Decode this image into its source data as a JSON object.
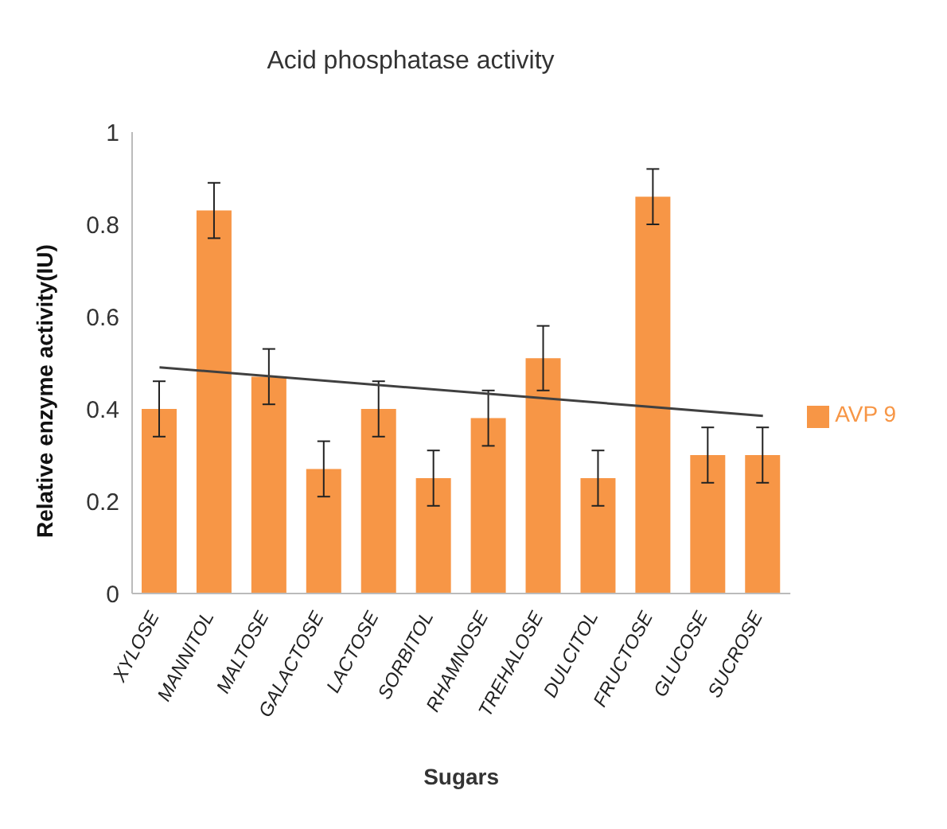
{
  "chart_data": {
    "type": "bar",
    "title": "Acid phosphatase activity",
    "xlabel": "Sugars",
    "ylabel": "Relative enzyme activity(IU)",
    "categories": [
      "XYLOSE",
      "MANNITOL",
      "MALTOSE",
      "GALACTOSE",
      "LACTOSE",
      "SORBITOL",
      "RHAMNOSE",
      "TREHALOSE",
      "DULCITOL",
      "FRUCTOSE",
      "GLUCOSE",
      "SUCROSE"
    ],
    "series": [
      {
        "name": "AVP 9",
        "color": "#f79646",
        "values": [
          0.4,
          0.83,
          0.47,
          0.27,
          0.4,
          0.25,
          0.38,
          0.51,
          0.25,
          0.86,
          0.3,
          0.3
        ],
        "errors": [
          0.06,
          0.06,
          0.06,
          0.06,
          0.06,
          0.06,
          0.06,
          0.07,
          0.06,
          0.06,
          0.06,
          0.06
        ]
      },
      {
        "type": "line",
        "color": "#404040",
        "x": [
          "XYLOSE",
          "SUCROSE"
        ],
        "values": [
          0.49,
          0.385
        ]
      }
    ],
    "ylim": [
      0,
      1
    ],
    "yticks": [
      0,
      0.2,
      0.4,
      0.6,
      0.8,
      1
    ],
    "grid": false,
    "legend": "right",
    "marker": "none",
    "line_style": "solid"
  }
}
